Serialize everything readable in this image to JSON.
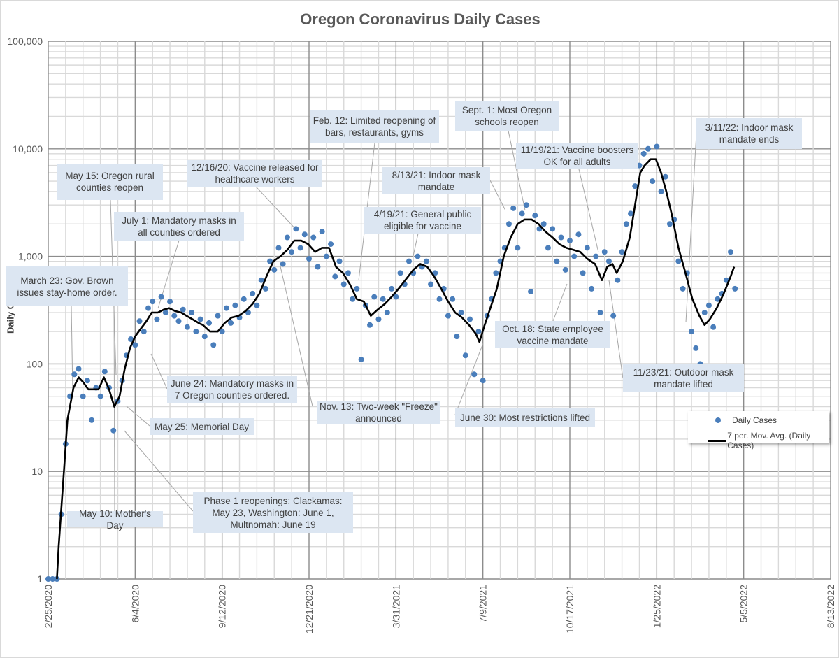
{
  "chart_data": {
    "type": "scatter",
    "title": "Oregon Coronavirus Daily Cases",
    "xlabel": "",
    "ylabel": "Daily Cases",
    "yscale": "log",
    "ylim": [
      1,
      100000
    ],
    "y_ticks": [
      "1",
      "10",
      "100",
      "1,000",
      "10,000",
      "100,000"
    ],
    "x_start_date": "2/25/2020",
    "x_range_days": [
      0,
      900
    ],
    "x_ticks": [
      "2/25/2020",
      "6/4/2020",
      "9/12/2020",
      "12/21/2020",
      "3/31/2021",
      "7/9/2021",
      "10/17/2021",
      "1/25/2022",
      "5/5/2022",
      "8/13/2022"
    ],
    "grid": true,
    "legend": {
      "position": "bottom-right",
      "entries": [
        "Daily Cases",
        "7 per. Mov. Avg. (Daily Cases)"
      ]
    },
    "colors": {
      "points": "#4a7ebb",
      "moving_average": "#000000"
    },
    "series": [
      {
        "name": "Daily Cases",
        "type": "scatter",
        "start_day": 0,
        "step_days": 5,
        "values": [
          1,
          1,
          1,
          4,
          18,
          50,
          80,
          90,
          50,
          70,
          30,
          60,
          50,
          85,
          60,
          24,
          45,
          70,
          120,
          170,
          150,
          250,
          200,
          330,
          380,
          260,
          420,
          300,
          380,
          280,
          250,
          320,
          220,
          300,
          200,
          260,
          180,
          240,
          150,
          280,
          200,
          330,
          240,
          350,
          270,
          400,
          300,
          450,
          350,
          600,
          500,
          900,
          750,
          1200,
          850,
          1500,
          1100,
          1800,
          1200,
          1600,
          950,
          1500,
          800,
          1700,
          1000,
          1300,
          650,
          900,
          550,
          700,
          400,
          500,
          110,
          350,
          230,
          420,
          260,
          400,
          300,
          500,
          420,
          700,
          550,
          900,
          700,
          1000,
          800,
          900,
          550,
          700,
          400,
          500,
          280,
          400,
          180,
          300,
          120,
          260,
          80,
          200,
          70,
          280,
          400,
          700,
          900,
          1200,
          2000,
          2800,
          1200,
          2500,
          3000,
          470,
          2400,
          1800,
          2000,
          1200,
          1800,
          900,
          1500,
          750,
          1400,
          1000,
          1600,
          700,
          1200,
          500,
          1000,
          300,
          1100,
          900,
          280,
          600,
          1100,
          2000,
          2500,
          4500,
          7000,
          9000,
          10000,
          5000,
          10500,
          4000,
          5500,
          2000,
          2200,
          900,
          500,
          700,
          200,
          140,
          100,
          300,
          350,
          220,
          400,
          450,
          600,
          1100,
          500
        ]
      },
      {
        "name": "7 per. Mov. Avg. (Daily Cases)",
        "type": "line",
        "points": [
          [
            10,
            1
          ],
          [
            12,
            2
          ],
          [
            18,
            10
          ],
          [
            22,
            30
          ],
          [
            29,
            60
          ],
          [
            35,
            75
          ],
          [
            40,
            68
          ],
          [
            46,
            58
          ],
          [
            52,
            58
          ],
          [
            58,
            58
          ],
          [
            64,
            75
          ],
          [
            70,
            58
          ],
          [
            76,
            40
          ],
          [
            82,
            50
          ],
          [
            88,
            90
          ],
          [
            94,
            140
          ],
          [
            100,
            180
          ],
          [
            106,
            210
          ],
          [
            113,
            250
          ],
          [
            119,
            300
          ],
          [
            126,
            300
          ],
          [
            133,
            320
          ],
          [
            139,
            330
          ],
          [
            146,
            310
          ],
          [
            153,
            300
          ],
          [
            159,
            280
          ],
          [
            166,
            260
          ],
          [
            173,
            240
          ],
          [
            178,
            230
          ],
          [
            186,
            200
          ],
          [
            195,
            200
          ],
          [
            203,
            240
          ],
          [
            211,
            270
          ],
          [
            219,
            280
          ],
          [
            227,
            310
          ],
          [
            235,
            360
          ],
          [
            243,
            450
          ],
          [
            251,
            650
          ],
          [
            259,
            900
          ],
          [
            267,
            1000
          ],
          [
            275,
            1150
          ],
          [
            283,
            1400
          ],
          [
            291,
            1400
          ],
          [
            299,
            1300
          ],
          [
            307,
            1100
          ],
          [
            315,
            1200
          ],
          [
            323,
            1200
          ],
          [
            331,
            800
          ],
          [
            339,
            700
          ],
          [
            347,
            550
          ],
          [
            355,
            400
          ],
          [
            363,
            380
          ],
          [
            371,
            280
          ],
          [
            379,
            320
          ],
          [
            387,
            360
          ],
          [
            395,
            420
          ],
          [
            403,
            500
          ],
          [
            412,
            620
          ],
          [
            420,
            750
          ],
          [
            428,
            850
          ],
          [
            436,
            800
          ],
          [
            444,
            650
          ],
          [
            452,
            500
          ],
          [
            460,
            380
          ],
          [
            468,
            300
          ],
          [
            476,
            270
          ],
          [
            484,
            230
          ],
          [
            492,
            190
          ],
          [
            496,
            160
          ],
          [
            502,
            230
          ],
          [
            508,
            320
          ],
          [
            516,
            500
          ],
          [
            524,
            1000
          ],
          [
            532,
            1500
          ],
          [
            540,
            2000
          ],
          [
            548,
            2200
          ],
          [
            556,
            2200
          ],
          [
            564,
            2000
          ],
          [
            572,
            1700
          ],
          [
            580,
            1500
          ],
          [
            588,
            1300
          ],
          [
            596,
            1200
          ],
          [
            604,
            1150
          ],
          [
            612,
            1100
          ],
          [
            620,
            950
          ],
          [
            629,
            850
          ],
          [
            637,
            600
          ],
          [
            643,
            800
          ],
          [
            649,
            850
          ],
          [
            654,
            700
          ],
          [
            661,
            900
          ],
          [
            669,
            1500
          ],
          [
            675,
            3000
          ],
          [
            681,
            6000
          ],
          [
            686,
            7000
          ],
          [
            693,
            8000
          ],
          [
            699,
            8000
          ],
          [
            705,
            6000
          ],
          [
            711,
            4000
          ],
          [
            717,
            2500
          ],
          [
            725,
            1200
          ],
          [
            733,
            700
          ],
          [
            741,
            400
          ],
          [
            749,
            280
          ],
          [
            755,
            230
          ],
          [
            761,
            260
          ],
          [
            769,
            330
          ],
          [
            777,
            450
          ],
          [
            785,
            650
          ],
          [
            789,
            800
          ]
        ]
      }
    ],
    "annotations": [
      {
        "text": "May 15: Oregon rural counties reopen"
      },
      {
        "text": "12/16/20: Vaccine released for healthcare workers"
      },
      {
        "text": "July 1: Mandatory masks in all counties ordered"
      },
      {
        "text": "March 23: Gov. Brown issues stay-home order."
      },
      {
        "text": "Feb. 12: Limited reopening of bars, restaurants, gyms"
      },
      {
        "text": "Sept. 1: Most Oregon schools reopen"
      },
      {
        "text": "11/19/21: Vaccine boosters OK for all adults"
      },
      {
        "text": "3/11/22: Indoor mask mandate ends"
      },
      {
        "text": "8/13/21: Indoor mask mandate"
      },
      {
        "text": "4/19/21: General public eligible for vaccine"
      },
      {
        "text": "Oct. 18: State employee vaccine mandate"
      },
      {
        "text": "11/23/21: Outdoor mask mandate lifted"
      },
      {
        "text": "June 24: Mandatory masks in 7 Oregon counties ordered."
      },
      {
        "text": "Nov. 13: Two-week \"Freeze\" announced"
      },
      {
        "text": "June 30: Most restrictions lifted"
      },
      {
        "text": "May 25: Memorial Day"
      },
      {
        "text": "Phase 1 reopenings: Clackamas: May 23, Washington: June 1, Multnomah: June 19"
      },
      {
        "text": "May 10: Mother's Day"
      }
    ]
  }
}
